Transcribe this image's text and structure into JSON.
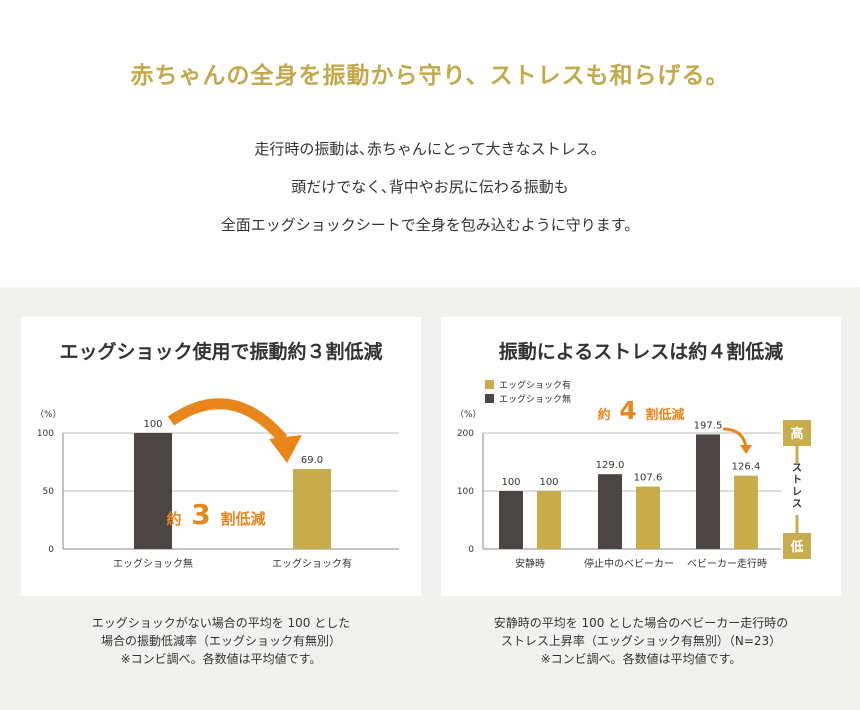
{
  "headline": "赤ちゃんの全身を振動から守り、ストレスも和らげる。",
  "intro": [
    "走行時の振動は､赤ちゃんにとって大きなストレス。",
    "頭だけでなく､背中やお尻に伝わる振動も",
    "全面エッグショックシートで全身を包み込むように守ります。"
  ],
  "colors": {
    "dark": "#4b4644",
    "gold": "#c8ad4d",
    "orange": "#e8861c",
    "headline": "#c3a949"
  },
  "chart_data": [
    {
      "type": "bar",
      "title": "エッグショック使用で振動約３割低減",
      "ylabel": "（%）",
      "ylim": [
        0,
        100
      ],
      "yticks": [
        "0",
        "50",
        "100"
      ],
      "categories": [
        "エッグショック無",
        "エッグショック有"
      ],
      "values": [
        100,
        69.0
      ],
      "value_labels": [
        "100",
        "69.0"
      ],
      "annotation": {
        "prefix": "約",
        "number": "3",
        "suffix": "割低減"
      },
      "note": [
        "エッグショックがない場合の平均を 100 とした",
        "場合の振動低減率（エッグショック有無別）",
        "※コンビ調べ。各数値は平均値です。"
      ]
    },
    {
      "type": "bar",
      "title": "振動によるストレスは約４割低減",
      "ylabel": "（%）",
      "ylim": [
        0,
        200
      ],
      "yticks": [
        "0",
        "100",
        "200"
      ],
      "categories": [
        "安静時",
        "停止中のベビーカー",
        "ベビーカー走行時"
      ],
      "series": [
        {
          "name": "エッグショック無",
          "values": [
            100,
            129.0,
            197.5
          ],
          "labels": [
            "100",
            "129.0",
            "197.5"
          ]
        },
        {
          "name": "エッグショック有",
          "values": [
            100,
            107.6,
            126.4
          ],
          "labels": [
            "100",
            "107.6",
            "126.4"
          ]
        }
      ],
      "legend": [
        "エッグショック有",
        "エッグショック無"
      ],
      "legend_position": "top-left",
      "annotation": {
        "prefix": "約",
        "number": "4",
        "suffix": "割低減"
      },
      "scale": {
        "high": "高",
        "label": "ストレス",
        "low": "低"
      },
      "note": [
        "安静時の平均を 100 とした場合のベビーカー走行時の",
        "ストレス上昇率（エッグショック有無別）（N=23）",
        "※コンビ調べ。各数値は平均値です。"
      ]
    }
  ]
}
